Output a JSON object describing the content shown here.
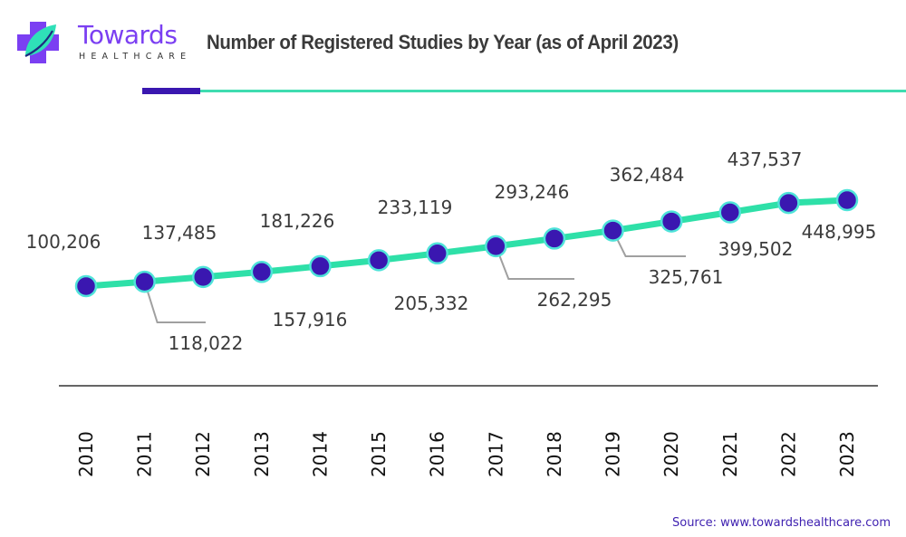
{
  "brand": {
    "name": "Towards",
    "subtitle": "HEALTHCARE",
    "logo_icon": "medical-cross-leaf-icon",
    "colors": {
      "primary": "#7b3ff2",
      "leaf": "#2fe0b8",
      "dark_leaf": "#1e2a80"
    }
  },
  "header": {
    "title": "Number of Registered Studies by Year (as of April 2023)"
  },
  "footer": {
    "source": "Source: www.towardshealthcare.com"
  },
  "colors": {
    "line": "#2ee0a8",
    "marker_fill": "#3a17b0",
    "marker_ring": "#4fe3d9",
    "leader": "#a0a0a0",
    "axis": "#666666",
    "accent_bar": "#3a17b0",
    "rule": "#3fdcb0"
  },
  "chart_data": {
    "type": "line",
    "title": "Number of Registered Studies by Year (as of April 2023)",
    "xlabel": "",
    "ylabel": "",
    "categories": [
      "2010",
      "2011",
      "2012",
      "2013",
      "2014",
      "2015",
      "2016",
      "2017",
      "2018",
      "2019",
      "2020",
      "2021",
      "2022",
      "2023"
    ],
    "series": [
      {
        "name": "Registered Studies",
        "values": [
          100206,
          118022,
          137485,
          157916,
          181226,
          205332,
          233119,
          262295,
          293246,
          325761,
          362484,
          399502,
          437537,
          448995
        ]
      }
    ],
    "data_labels": [
      "100,206",
      "118,022",
      "137,485",
      "157,916",
      "181,226",
      "205,332",
      "233,119",
      "262,295",
      "293,246",
      "325,761",
      "362,484",
      "399,502",
      "437,537",
      "448,995"
    ],
    "label_positions": [
      "above",
      "below-leader",
      "above",
      "below",
      "above",
      "below",
      "above",
      "below-leader",
      "above",
      "below-leader",
      "above",
      "below",
      "above",
      "below"
    ],
    "ylim": [
      0,
      500000
    ],
    "grid": false,
    "legend": "none",
    "x_tick_rotation": "vertical"
  }
}
